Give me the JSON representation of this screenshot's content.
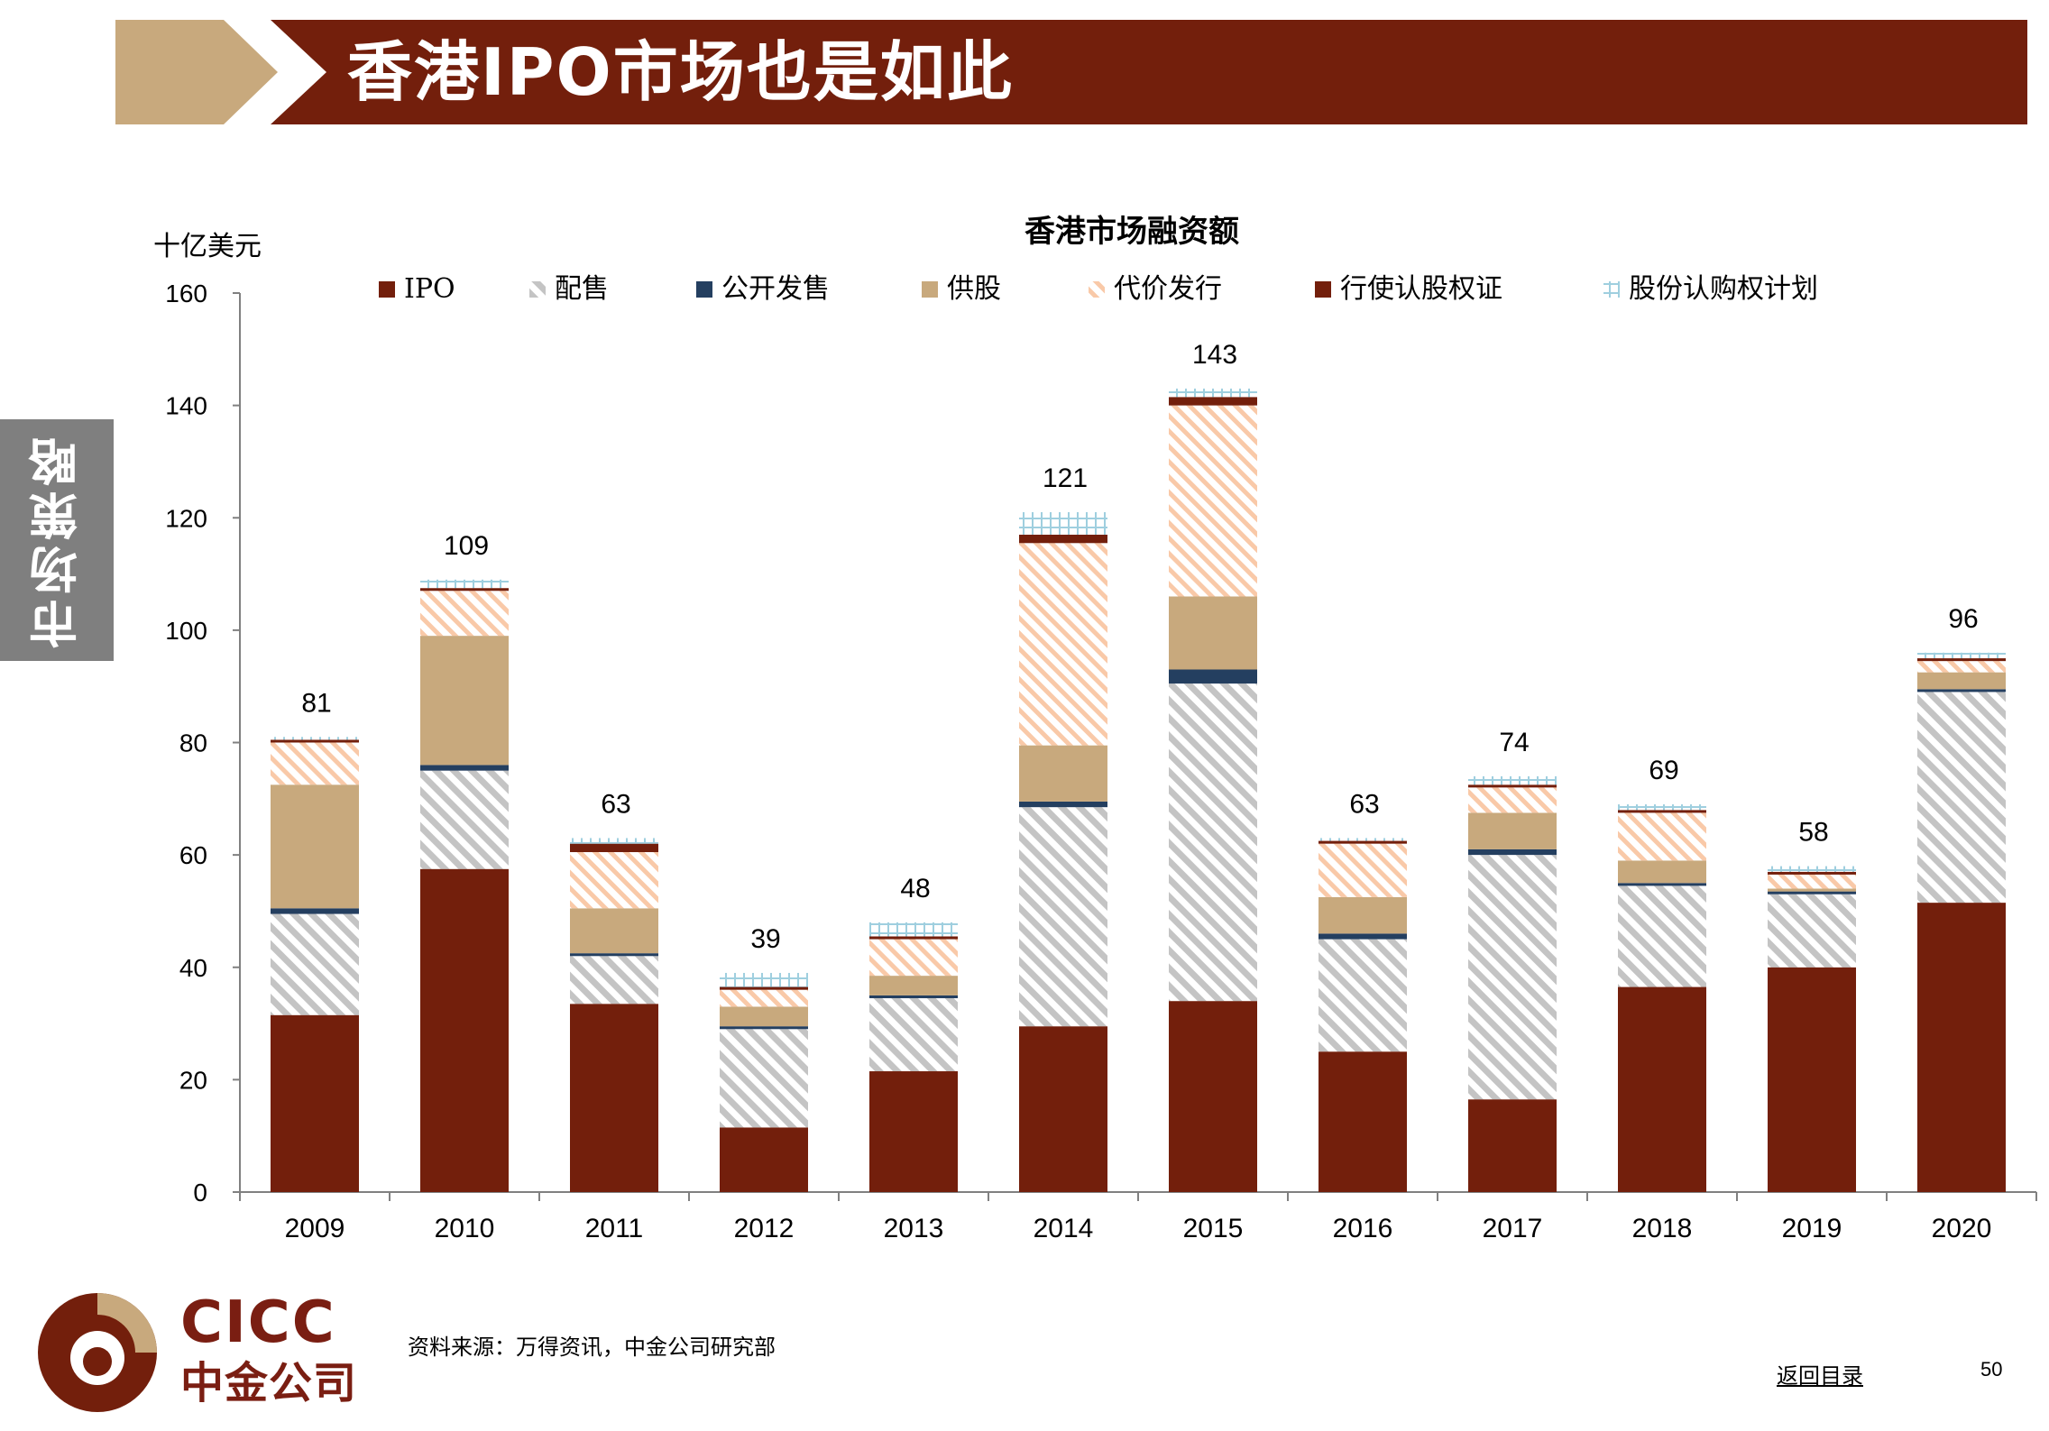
{
  "header": {
    "title": "香港IPO市场也是如此"
  },
  "side_tab": {
    "label": "市场策略"
  },
  "footer": {
    "logo_top": "CICC",
    "logo_bottom": "中金公司",
    "source": "资料来源：万得资讯，中金公司研究部",
    "back_link": "返回目录",
    "page_number": "50"
  },
  "colors": {
    "header_bar": "#731f0c",
    "header_chevron": "#c8a97d",
    "ipo": "#731f0c",
    "placement": "#c8c8c8",
    "public_offer": "#243f60",
    "rights": "#c8a97d",
    "consideration": "#f9c9a8",
    "warrants": "#731f0c",
    "share_option": "#b7dde8"
  },
  "chart_data": {
    "type": "bar",
    "stacked": true,
    "title": "香港市场融资额",
    "unit_label": "十亿美元",
    "ylim": [
      0,
      160
    ],
    "yticks": [
      0,
      20,
      40,
      60,
      80,
      100,
      120,
      140,
      160
    ],
    "legend_position": "top",
    "categories": [
      "2009",
      "2010",
      "2011",
      "2012",
      "2013",
      "2014",
      "2015",
      "2016",
      "2017",
      "2018",
      "2019",
      "2020"
    ],
    "totals": [
      81,
      109,
      63,
      39,
      48,
      121,
      143,
      63,
      74,
      69,
      58,
      96
    ],
    "series": [
      {
        "name": "IPO",
        "pattern": "solid",
        "color": "#731f0c",
        "values": [
          31.5,
          57.5,
          33.5,
          11.5,
          21.5,
          29.5,
          34,
          25,
          16.5,
          36.5,
          40,
          51.5
        ]
      },
      {
        "name": "配售",
        "pattern": "diagonal-gray",
        "color": "#c8c8c8",
        "values": [
          18,
          17.5,
          8.5,
          17.5,
          13,
          39,
          56.5,
          20,
          43.5,
          18,
          13,
          37.5
        ]
      },
      {
        "name": "公开发售",
        "pattern": "solid",
        "color": "#243f60",
        "values": [
          1,
          1,
          0.5,
          0.5,
          0.5,
          1,
          2.5,
          1,
          1,
          0.5,
          0.5,
          0.5
        ]
      },
      {
        "name": "供股",
        "pattern": "solid",
        "color": "#c8a97d",
        "values": [
          22,
          23,
          8,
          3.5,
          3.5,
          10,
          13,
          6.5,
          6.5,
          4,
          0.5,
          3
        ]
      },
      {
        "name": "代价发行",
        "pattern": "diagonal-peach",
        "color": "#f9c9a8",
        "values": [
          7.5,
          8,
          10,
          3,
          6.5,
          36,
          34,
          9.5,
          4.5,
          8.5,
          2.5,
          2
        ]
      },
      {
        "name": "行使认股权证",
        "pattern": "solid",
        "color": "#731f0c",
        "values": [
          0.5,
          0.5,
          1.5,
          0.5,
          0.5,
          1.5,
          1.5,
          0.5,
          0.5,
          0.5,
          0.5,
          0.5
        ]
      },
      {
        "name": "股份认购权计划",
        "pattern": "grid-blue",
        "color": "#b7dde8",
        "values": [
          0.5,
          1.5,
          1,
          2.5,
          2.5,
          4,
          1.5,
          0.5,
          1.5,
          1,
          1,
          1
        ]
      }
    ]
  }
}
